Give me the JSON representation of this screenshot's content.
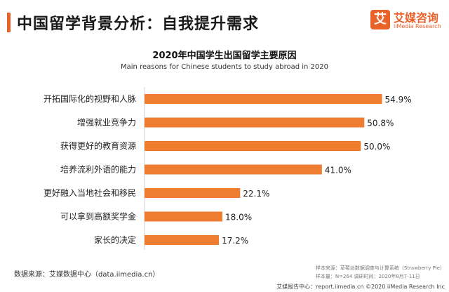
{
  "header": {
    "title": "中国留学背景分析：自我提升需求",
    "logo_mark": "艾",
    "logo_cn": "艾媒咨询",
    "logo_en": "iiMedia Research"
  },
  "chart_data": {
    "type": "bar",
    "orientation": "horizontal",
    "title": "2020年中国学生出国留学主要原因",
    "subtitle": "Main reasons for Chinese students to study abroad in 2020",
    "categories": [
      "开拓国际化的视野和人脉",
      "增强就业竞争力",
      "获得更好的教育资源",
      "培养流利外语的能力",
      "更好融入当地社会和移民",
      "可以拿到高额奖学金",
      "家长的决定"
    ],
    "values": [
      54.9,
      50.8,
      50.0,
      41.0,
      22.1,
      18.0,
      17.2
    ],
    "value_labels": [
      "54.9%",
      "50.8%",
      "50.0%",
      "41.0%",
      "22.1%",
      "18.0%",
      "17.2%"
    ],
    "unit": "%",
    "xlim": [
      0,
      60
    ],
    "bar_color": "#ee7d31",
    "grid": false
  },
  "footer": {
    "source": "数据来源：艾媒数据中心（data.iimedia.cn）",
    "sample_source": "样本来源：草莓派数据调查与计算系统（Strawberry Pie）",
    "sample_info": "样本量：N=264      调研时间：2020年8月7-11日",
    "bottom": "艾媒报告中心：report.iimedia.cn   ©2020  iiMedia Research  Inc"
  }
}
